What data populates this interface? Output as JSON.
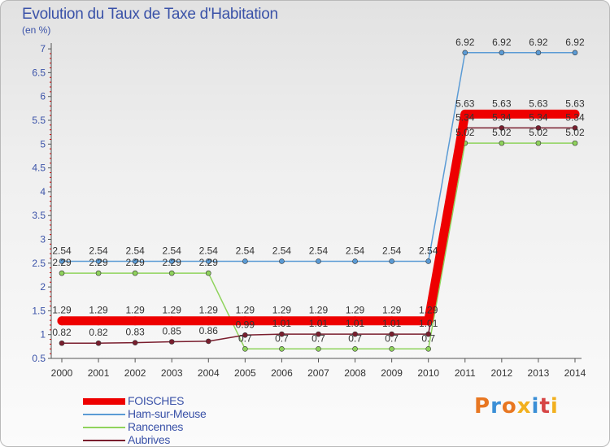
{
  "chart_data": {
    "type": "line",
    "title": "Evolution du Taux de Taxe d'Habitation",
    "unit_label": "(en %)",
    "x": [
      "2000",
      "2001",
      "2002",
      "2003",
      "2004",
      "2005",
      "2006",
      "2007",
      "2008",
      "2009",
      "2010",
      "2011",
      "2012",
      "2013",
      "2014"
    ],
    "y_ticks": [
      "0.5",
      "1",
      "1.5",
      "2",
      "2.5",
      "3",
      "3.5",
      "4",
      "4.5",
      "5",
      "5.5",
      "6",
      "6.5",
      "7"
    ],
    "ylim": [
      0.5,
      7
    ],
    "grid": false,
    "legend_position": "bottom-left",
    "series": [
      {
        "name": "FOISCHES",
        "color": "#ee0000",
        "values": [
          1.29,
          1.29,
          1.29,
          1.29,
          1.29,
          1.29,
          1.29,
          1.29,
          1.29,
          1.29,
          1.29,
          5.63,
          5.63,
          5.63,
          5.63
        ],
        "labels": [
          "1.29",
          "1.29",
          "1.29",
          "1.29",
          "1.29",
          "1.29",
          "1.29",
          "1.29",
          "1.29",
          "1.29",
          "1.29",
          "5.63",
          "5.63",
          "5.63",
          "5.63"
        ]
      },
      {
        "name": "Ham-sur-Meuse",
        "color": "#5b9bd5",
        "values": [
          2.54,
          2.54,
          2.54,
          2.54,
          2.54,
          2.54,
          2.54,
          2.54,
          2.54,
          2.54,
          2.54,
          6.92,
          6.92,
          6.92,
          6.92
        ],
        "labels": [
          "2.54",
          "2.54",
          "2.54",
          "2.54",
          "2.54",
          "2.54",
          "2.54",
          "2.54",
          "2.54",
          "2.54",
          "2.54",
          "6.92",
          "6.92",
          "6.92",
          "6.92"
        ]
      },
      {
        "name": "Rancennes",
        "color": "#8fd35c",
        "values": [
          2.29,
          2.29,
          2.29,
          2.29,
          2.29,
          0.7,
          0.7,
          0.7,
          0.7,
          0.7,
          0.7,
          5.02,
          5.02,
          5.02,
          5.02
        ],
        "labels": [
          "2.29",
          "2.29",
          "2.29",
          "2.29",
          "2.29",
          "0.7",
          "0.7",
          "0.7",
          "0.7",
          "0.7",
          "0.7",
          "5.02",
          "5.02",
          "5.02",
          "5.02"
        ]
      },
      {
        "name": "Aubrives",
        "color": "#7a1e2e",
        "values": [
          0.82,
          0.82,
          0.83,
          0.85,
          0.86,
          0.99,
          1.01,
          1.01,
          1.01,
          1.01,
          1.01,
          5.34,
          5.34,
          5.34,
          5.34
        ],
        "labels": [
          "0.82",
          "0.82",
          "0.83",
          "0.85",
          "0.86",
          "0.99",
          "1.01",
          "1.01",
          "1.01",
          "1.01",
          "1.01",
          "5.34",
          "5.34",
          "5.34",
          "5.34"
        ]
      }
    ]
  },
  "logo_text": "Proxiti",
  "colors": {
    "text": "#3a52a8",
    "axis": "#555555",
    "tick_red": "#cc0000"
  }
}
